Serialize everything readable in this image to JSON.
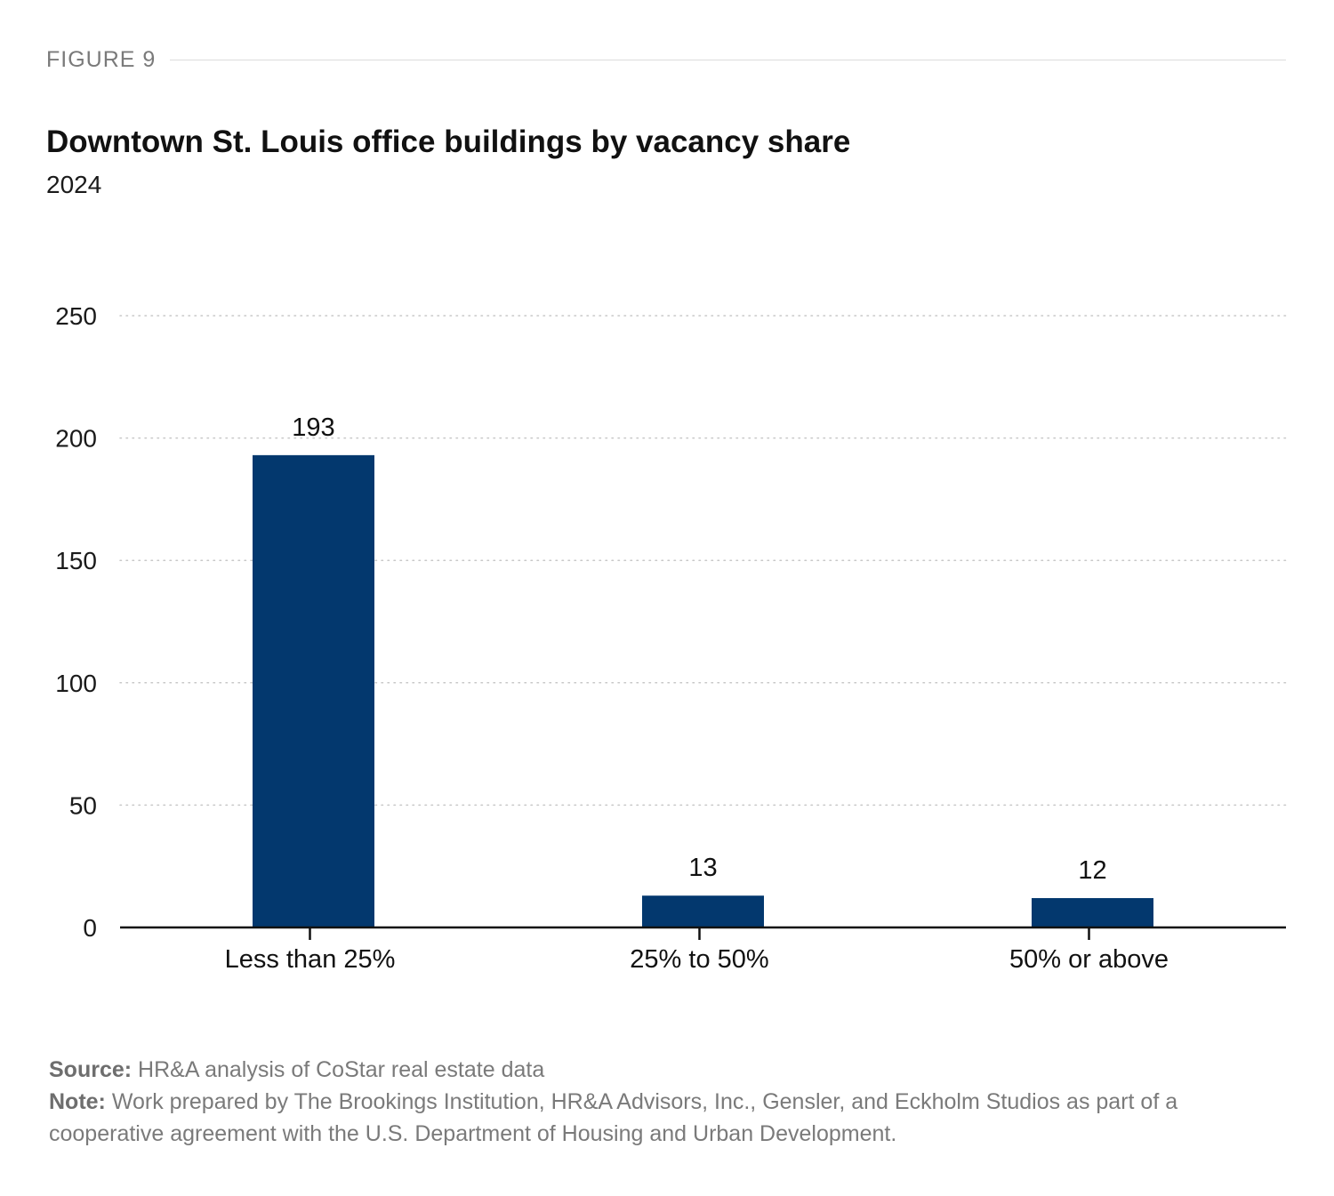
{
  "figure_label": "FIGURE 9",
  "footer": {
    "source_label": "Source:",
    "source_text": "HR&A analysis of CoStar real estate data",
    "note_label": "Note:",
    "note_text": "Work prepared by The Brookings Institution, HR&A Advisors, Inc., Gensler, and Eckholm Studios as part of a cooperative agreement with the U.S. Department of Housing and Urban Development."
  },
  "colors": {
    "bar": "#03386e",
    "grid": "#c8c8c8",
    "axis": "#111111"
  },
  "chart_data": {
    "type": "bar",
    "title": "Downtown St. Louis office buildings by vacancy share",
    "subtitle": "2024",
    "categories": [
      "Less than 25%",
      "25% to 50%",
      "50% or above"
    ],
    "values": [
      193,
      13,
      12
    ],
    "data_labels": [
      "193",
      "13",
      "12"
    ],
    "xlabel": "",
    "ylabel": "",
    "ylim": [
      0,
      250
    ],
    "yticks": [
      0,
      50,
      100,
      150,
      200,
      250
    ],
    "grid": "horizontal dotted",
    "legend": "none"
  }
}
